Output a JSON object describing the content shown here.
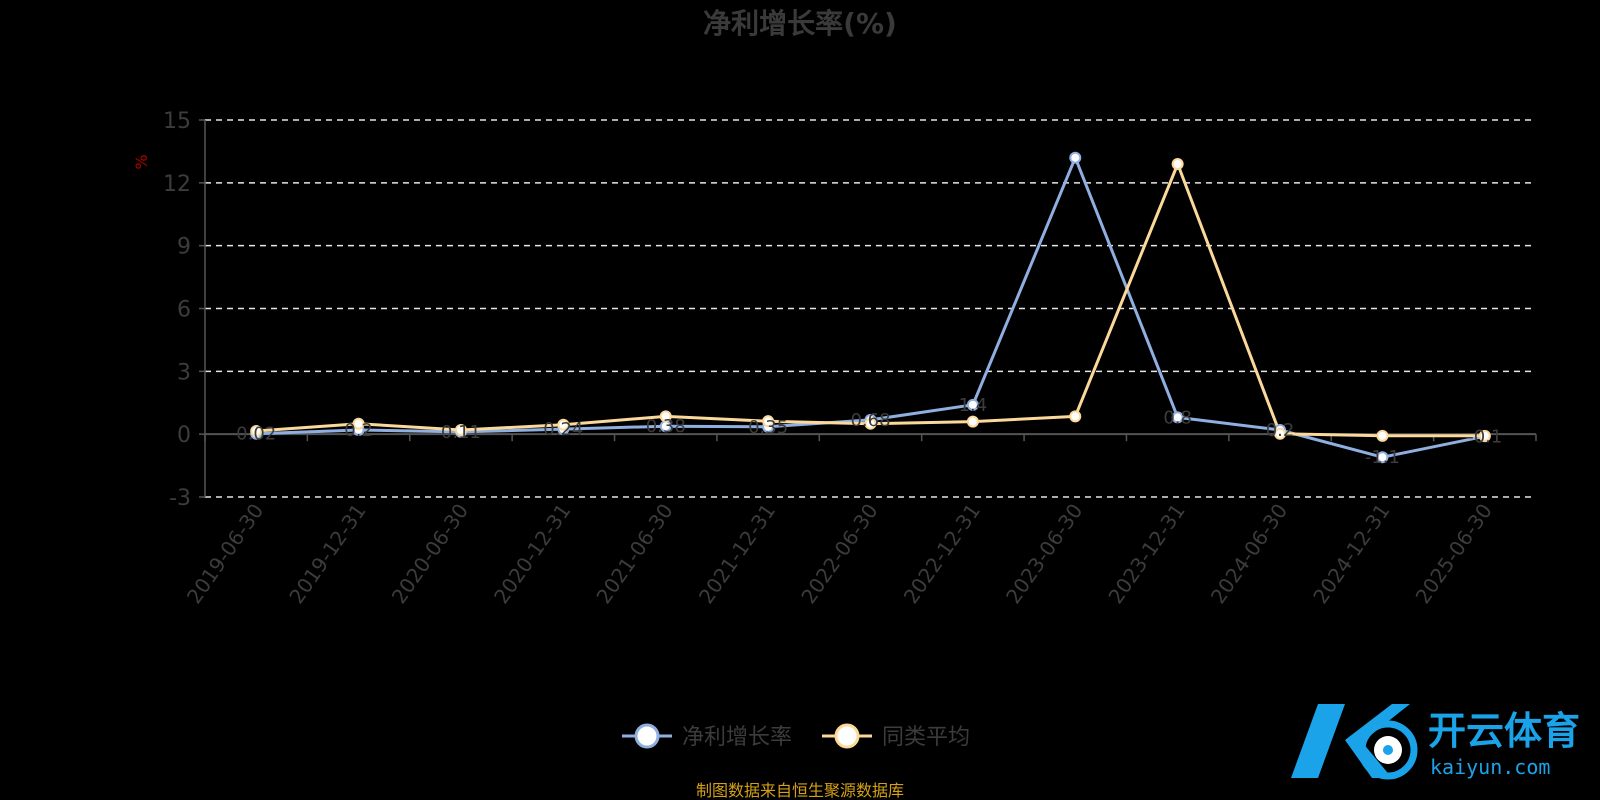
{
  "chart_data": {
    "type": "line",
    "title": "净利增长率(%)",
    "ylabel": "%",
    "ylim": [
      -3,
      15
    ],
    "yticks": [
      -3,
      0,
      3,
      6,
      9,
      12,
      15
    ],
    "grid": true,
    "legend_position": "bottom-center",
    "categories": [
      "2019-06-30",
      "2019-12-31",
      "2020-06-30",
      "2020-12-31",
      "2021-06-30",
      "2021-12-31",
      "2022-06-30",
      "2022-12-31",
      "2023-06-30",
      "2023-12-31",
      "2024-06-30",
      "2024-12-31",
      "2025-06-30"
    ],
    "series": [
      {
        "name": "净利增长率",
        "color": "#8fafe0",
        "values": [
          0.02,
          0.2,
          0.11,
          0.24,
          0.38,
          0.35,
          0.68,
          1.4,
          13.2,
          0.8,
          0.2,
          -1.1,
          -0.1
        ],
        "labels": [
          "0.02",
          "0.2",
          "0.11",
          "0.24",
          "0.38",
          "0.35",
          "0.68",
          "1.4",
          "",
          "0.8",
          "0.2",
          "-1.1",
          "-0.1"
        ]
      },
      {
        "name": "同类平均",
        "color": "#fbd99a",
        "values": [
          0.15,
          0.5,
          0.2,
          0.45,
          0.85,
          0.62,
          0.5,
          0.6,
          0.85,
          12.9,
          0.02,
          -0.08,
          -0.08
        ]
      }
    ]
  },
  "source_note": "制图数据来自恒生聚源数据库",
  "watermark": {
    "brand": "开云体育",
    "domain": "kaiyun.com"
  }
}
